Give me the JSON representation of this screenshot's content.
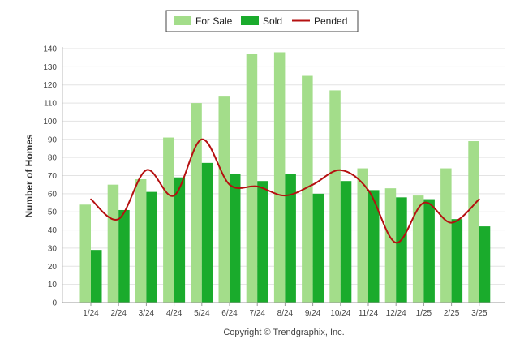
{
  "chart_data": {
    "type": "bar",
    "categories": [
      "1/24",
      "2/24",
      "3/24",
      "4/24",
      "5/24",
      "6/24",
      "7/24",
      "8/24",
      "9/24",
      "10/24",
      "11/24",
      "12/24",
      "1/25",
      "2/25",
      "3/25"
    ],
    "series": [
      {
        "name": "For Sale",
        "type": "bar",
        "color": "#a3dd8a",
        "values": [
          54,
          65,
          68,
          91,
          110,
          114,
          137,
          138,
          125,
          117,
          74,
          63,
          59,
          74,
          89
        ]
      },
      {
        "name": "Sold",
        "type": "bar",
        "color": "#1aab2c",
        "values": [
          29,
          51,
          61,
          69,
          77,
          71,
          67,
          71,
          60,
          67,
          62,
          58,
          57,
          46,
          42
        ]
      },
      {
        "name": "Pended",
        "type": "line",
        "color": "#b51010",
        "values": [
          57,
          46,
          73,
          59,
          90,
          65,
          64,
          59,
          65,
          73,
          62,
          33,
          55,
          44,
          57
        ]
      }
    ],
    "ylabel": "Number of Homes",
    "xlabel": "",
    "ylim": [
      0,
      140
    ],
    "yticks": [
      0,
      10,
      20,
      30,
      40,
      50,
      60,
      70,
      80,
      90,
      100,
      110,
      120,
      130,
      140
    ],
    "grid": true,
    "legend": "top-center",
    "credit": "Copyright © Trendgraphix, Inc."
  }
}
